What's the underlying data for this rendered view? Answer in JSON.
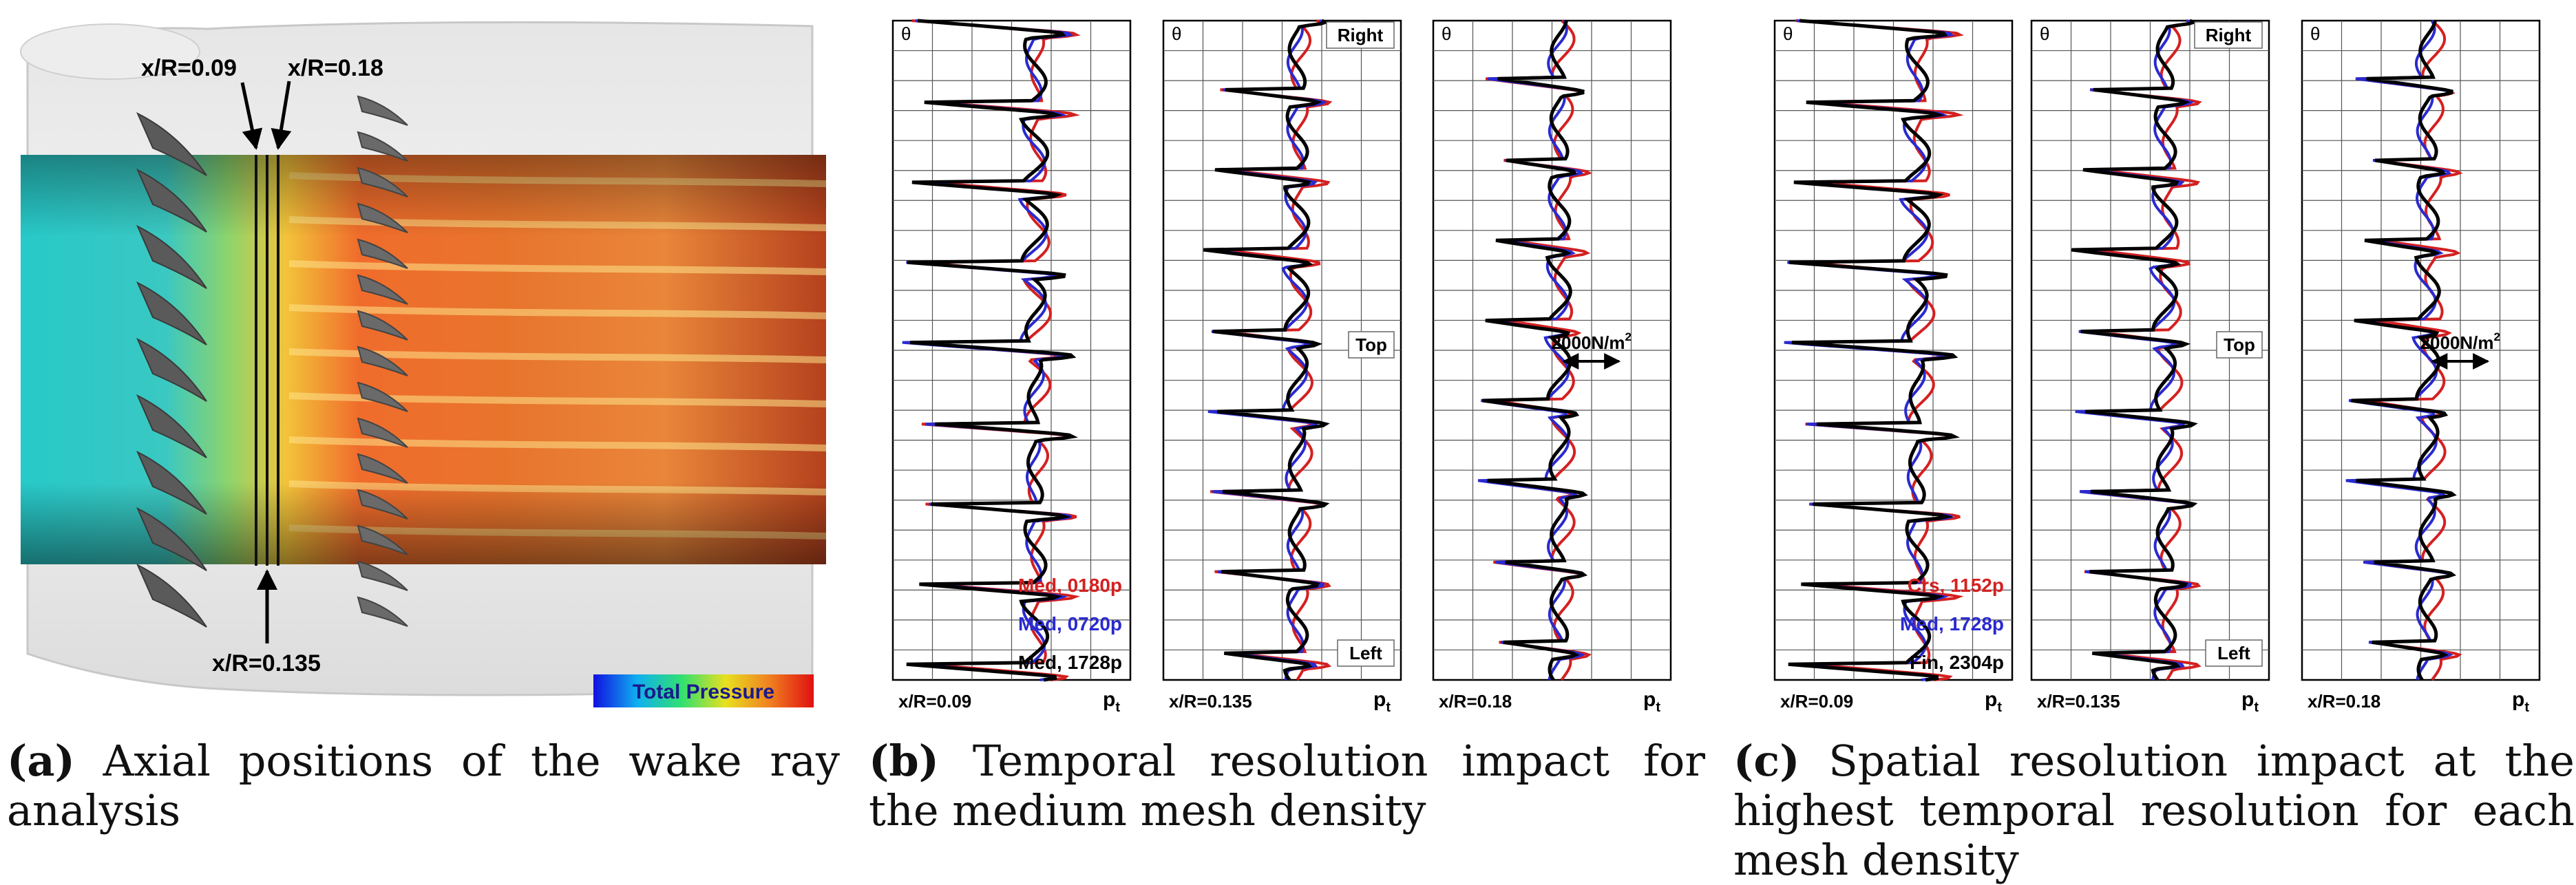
{
  "panel_a": {
    "labels": {
      "x009": "x/R=0.09",
      "x018": "x/R=0.18",
      "x0135": "x/R=0.135"
    },
    "colorbar_label": "Total Pressure"
  },
  "captions": [
    {
      "letter": "(a)",
      "text": "Axial positions of the wake ray analysis"
    },
    {
      "letter": "(b)",
      "text": "Temporal resolution impact for the medium mesh density"
    },
    {
      "letter": "(c)",
      "text": "Spatial resolution impact at the highest temporal resolution for each mesh density"
    }
  ],
  "colors": {
    "red": "#d42020",
    "blue": "#2a2ad0",
    "black": "#000000",
    "grid": "#555555"
  },
  "chart_data": [
    {
      "type": "line",
      "panel": "b",
      "theta_symbol": "θ",
      "xlabel": "x/R=0.09",
      "ylabel": "pt",
      "ylabel_main": "p",
      "ylabel_sub": "t",
      "legend": [
        "Med, 0180p",
        "Med, 0720p",
        "Med, 1728p"
      ],
      "series": [
        {
          "name": "Med, 0180p",
          "color": "#d42020"
        },
        {
          "name": "Med, 0720p",
          "color": "#2a2ad0"
        },
        {
          "name": "Med, 1728p",
          "color": "#000000"
        }
      ]
    },
    {
      "type": "line",
      "panel": "b",
      "theta_symbol": "θ",
      "xlabel": "x/R=0.135",
      "ylabel": "pt",
      "ylabel_main": "p",
      "ylabel_sub": "t",
      "position_labels": {
        "right": "Right",
        "top": "Top",
        "left": "Left"
      }
    },
    {
      "type": "line",
      "panel": "b",
      "theta_symbol": "θ",
      "xlabel": "x/R=0.18",
      "ylabel": "pt",
      "ylabel_main": "p",
      "ylabel_sub": "t",
      "scale_bar": {
        "value": "2000N/m",
        "superscript": "2"
      }
    },
    {
      "type": "line",
      "panel": "c",
      "theta_symbol": "θ",
      "xlabel": "x/R=0.09",
      "ylabel": "pt",
      "ylabel_main": "p",
      "ylabel_sub": "t",
      "legend": [
        "Crs, 1152p",
        "Med, 1728p",
        "Fin, 2304p"
      ],
      "series": [
        {
          "name": "Crs, 1152p",
          "color": "#d42020"
        },
        {
          "name": "Med, 1728p",
          "color": "#2a2ad0"
        },
        {
          "name": "Fin, 2304p",
          "color": "#000000"
        }
      ]
    },
    {
      "type": "line",
      "panel": "c",
      "theta_symbol": "θ",
      "xlabel": "x/R=0.135",
      "ylabel": "pt",
      "ylabel_main": "p",
      "ylabel_sub": "t",
      "position_labels": {
        "right": "Right",
        "top": "Top",
        "left": "Left"
      }
    },
    {
      "type": "line",
      "panel": "c",
      "theta_symbol": "θ",
      "xlabel": "x/R=0.18",
      "ylabel": "pt",
      "ylabel_main": "p",
      "ylabel_sub": "t",
      "scale_bar": {
        "value": "2000N/m",
        "superscript": "2"
      }
    }
  ]
}
